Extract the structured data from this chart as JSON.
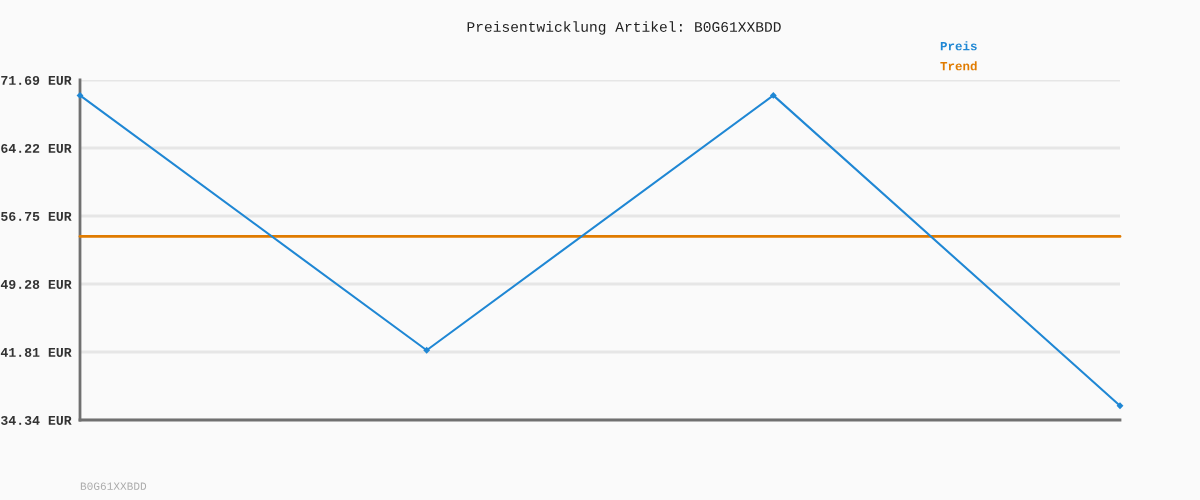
{
  "chart_data": {
    "type": "line",
    "title": "Preisentwicklung Artikel: B0G61XXBDD",
    "categories": [
      null,
      null,
      null,
      null
    ],
    "series": [
      {
        "name": "Preis",
        "color": "#1f87d4",
        "values": [
          70.0,
          42.0,
          70.0,
          35.9
        ],
        "marker": "diamond"
      },
      {
        "name": "Trend",
        "color": "#e07b00",
        "values": [
          54.5,
          54.5,
          54.5,
          54.5
        ],
        "marker": "none"
      }
    ],
    "ylim": [
      34.34,
      71.69
    ],
    "yticks": [
      {
        "value": 34.34,
        "label": "34.34 EUR"
      },
      {
        "value": 41.81,
        "label": "41.81 EUR"
      },
      {
        "value": 49.28,
        "label": "49.28 EUR"
      },
      {
        "value": 56.75,
        "label": "56.75 EUR"
      },
      {
        "value": 64.22,
        "label": "64.22 EUR"
      },
      {
        "value": 71.69,
        "label": "71.69 EUR"
      }
    ],
    "grid": "y",
    "legend": "top right",
    "tick_labels": "y",
    "line_style": "solid",
    "annotations": [
      "B0G61XXBDD"
    ]
  }
}
